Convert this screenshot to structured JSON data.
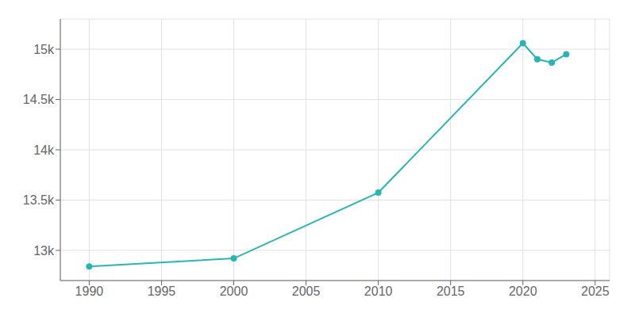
{
  "chart_data": {
    "type": "line",
    "x": [
      1990,
      2000,
      2010,
      2020,
      2021,
      2022,
      2023
    ],
    "values": [
      12840,
      12920,
      13574,
      15059,
      14900,
      14867,
      14950
    ],
    "color": "#2ab5b5",
    "marker": "circle",
    "xlim": [
      1988,
      2026
    ],
    "ylim": [
      12700,
      15300
    ],
    "xticks": [
      1990,
      1995,
      2000,
      2005,
      2010,
      2015,
      2020,
      2025
    ],
    "yticks": [
      {
        "value": 13000,
        "label": "13k"
      },
      {
        "value": 13500,
        "label": "13.5k"
      },
      {
        "value": 14000,
        "label": "14k"
      },
      {
        "value": 14500,
        "label": "14.5k"
      },
      {
        "value": 15000,
        "label": "15k"
      }
    ],
    "grid": true
  }
}
